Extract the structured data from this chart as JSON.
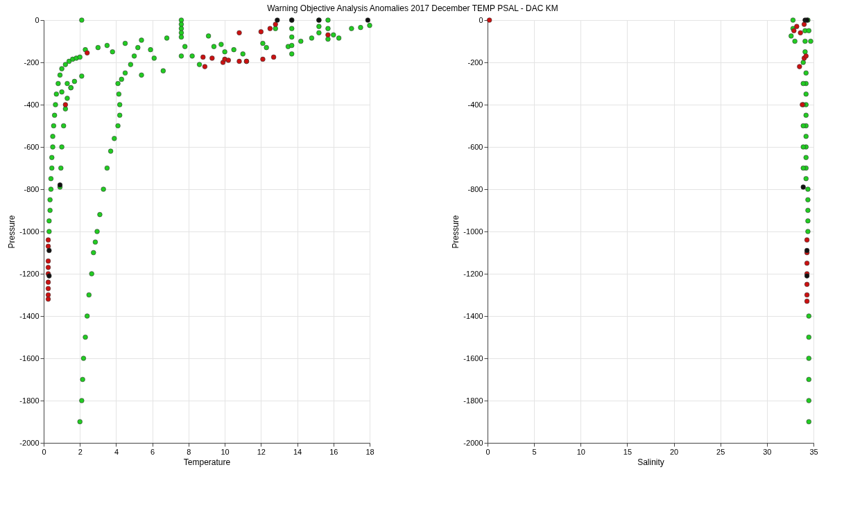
{
  "chart_data": [
    {
      "type": "scatter",
      "title": "Warning Objective Analysis Anomalies 2017 December TEMP PSAL - DAC KM",
      "xlabel": "Temperature",
      "ylabel": "Pressure",
      "xlim": [
        0,
        18
      ],
      "ylim": [
        -2000,
        0
      ],
      "xticks": [
        0,
        2,
        4,
        6,
        8,
        10,
        12,
        14,
        16,
        18
      ],
      "yticks": [
        -2000,
        -1800,
        -1600,
        -1400,
        -1200,
        -1000,
        -800,
        -600,
        -400,
        -200,
        0
      ],
      "grid": true,
      "marker": "circle",
      "series": [
        {
          "color": "#22cc22",
          "x": [
            0.3,
            0.3,
            0.35,
            0.35,
            0.4,
            0.4,
            0.45,
            0.45,
            0.5,
            0.5,
            0.55,
            0.6,
            0.65,
            0.7,
            0.8,
            0.9,
            1.0,
            1.2,
            1.4,
            1.6,
            1.8,
            2.0,
            0.9,
            0.95,
            1.0,
            1.1,
            1.2,
            1.3,
            1.5,
            1.7,
            2.1,
            2.0,
            2.1,
            2.15,
            2.2,
            2.3,
            2.4,
            2.5,
            2.65,
            2.75,
            2.85,
            2.95,
            3.1,
            3.3,
            3.5,
            3.7,
            3.9,
            4.1,
            4.2,
            4.2,
            4.15,
            4.1,
            4.3,
            4.5,
            4.8,
            5.0,
            5.2,
            5.4,
            2.1,
            1.0,
            1.3,
            1.5,
            2.3,
            3.0,
            3.5,
            3.8,
            4.5,
            5.4,
            5.9,
            6.1,
            6.8,
            6.6,
            7.6,
            7.6,
            7.6,
            7.6,
            7.6,
            7.6,
            7.8,
            8.2,
            8.6,
            9.1,
            9.4,
            9.8,
            10.0,
            10.5,
            11.0,
            11.2,
            12.1,
            12.3,
            12.8,
            13.5,
            13.7,
            13.7,
            13.7,
            13.7,
            13.7,
            14.2,
            14.8,
            15.2,
            15.2,
            15.2,
            15.7,
            15.7,
            15.7,
            16.0,
            16.3,
            17.0,
            17.5,
            18.0
          ],
          "values": [
            -1000,
            -950,
            -900,
            -850,
            -800,
            -750,
            -700,
            -650,
            -600,
            -550,
            -500,
            -450,
            -400,
            -350,
            -300,
            -260,
            -230,
            -210,
            -195,
            -185,
            -180,
            -175,
            -790,
            -700,
            -600,
            -500,
            -420,
            -370,
            -320,
            -290,
            -265,
            -1900,
            -1800,
            -1700,
            -1600,
            -1500,
            -1400,
            -1300,
            -1200,
            -1100,
            -1050,
            -1000,
            -920,
            -800,
            -700,
            -620,
            -560,
            -500,
            -450,
            -400,
            -350,
            -300,
            -280,
            -250,
            -210,
            -170,
            -130,
            -95,
            0,
            -340,
            -300,
            -320,
            -140,
            -130,
            -120,
            -150,
            -110,
            -260,
            -140,
            -180,
            -85,
            -240,
            0,
            -20,
            -40,
            -60,
            -80,
            -170,
            -125,
            -170,
            -210,
            -75,
            -125,
            -115,
            -150,
            -140,
            -160,
            -195,
            -110,
            -130,
            -40,
            -125,
            0,
            -40,
            -80,
            -120,
            -160,
            -100,
            -85,
            -60,
            0,
            -30,
            0,
            -40,
            -90,
            -70,
            -85,
            -40,
            -35,
            -25
          ]
        },
        {
          "color": "#cc1111",
          "x": [
            0.25,
            0.25,
            0.25,
            0.25,
            0.25,
            0.25,
            0.25,
            0.25,
            0.25,
            1.2,
            2.4,
            8.9,
            8.8,
            9.3,
            9.9,
            10.0,
            10.2,
            10.8,
            10.8,
            11.2,
            12.0,
            12.1,
            12.5,
            12.7,
            12.8,
            15.7
          ],
          "values": [
            -1040,
            -1070,
            -1140,
            -1170,
            -1200,
            -1240,
            -1270,
            -1300,
            -1320,
            -400,
            -155,
            -220,
            -175,
            -180,
            -200,
            -185,
            -190,
            -60,
            -195,
            -195,
            -55,
            -185,
            -40,
            -175,
            -20,
            -70
          ]
        },
        {
          "color": "#111111",
          "x": [
            0.9,
            0.3,
            0.3,
            12.9,
            13.7,
            15.2,
            17.9
          ],
          "values": [
            -780,
            -1090,
            -1210,
            0,
            0,
            0,
            0
          ]
        }
      ]
    },
    {
      "type": "scatter",
      "xlabel": "Salinity",
      "ylabel": "Pressure",
      "xlim": [
        0,
        35
      ],
      "ylim": [
        -2000,
        0
      ],
      "xticks": [
        0,
        5,
        10,
        15,
        20,
        25,
        30,
        35
      ],
      "yticks": [
        -2000,
        -1800,
        -1600,
        -1400,
        -1200,
        -1000,
        -800,
        -600,
        -400,
        -200,
        0
      ],
      "grid": true,
      "marker": "circle",
      "series": [
        {
          "color": "#22cc22",
          "x": [
            34.5,
            34.5,
            34.5,
            34.5,
            34.5,
            34.5,
            34.4,
            34.4,
            34.4,
            34.4,
            34.4,
            34.2,
            34.2,
            34.2,
            34.2,
            34.2,
            34.2,
            34.2,
            34.2,
            34.2,
            34.2,
            34.2,
            33.9,
            33.9,
            33.9,
            33.9,
            33.9,
            33.9,
            34.1,
            34.1,
            34.1,
            32.8,
            32.8,
            32.6,
            33.0,
            34.7,
            34.5,
            34.4
          ],
          "values": [
            -1900,
            -1800,
            -1700,
            -1600,
            -1500,
            -1400,
            -1000,
            -950,
            -900,
            -850,
            -800,
            -750,
            -700,
            -650,
            -600,
            -550,
            -500,
            -450,
            -400,
            -350,
            -300,
            -250,
            -700,
            -600,
            -500,
            -400,
            -300,
            -200,
            -150,
            -100,
            -50,
            0,
            -40,
            -75,
            -100,
            -100,
            -50,
            0
          ]
        },
        {
          "color": "#cc1111",
          "x": [
            0.2,
            32.9,
            33.2,
            33.6,
            34.0,
            33.5,
            34.0,
            34.2,
            33.8,
            34.3,
            34.3,
            34.3,
            34.3,
            34.3,
            34.3,
            34.3
          ],
          "values": [
            0,
            -50,
            -30,
            -60,
            -20,
            -220,
            -180,
            -170,
            -400,
            -1040,
            -1100,
            -1150,
            -1200,
            -1250,
            -1300,
            -1330
          ]
        },
        {
          "color": "#111111",
          "x": [
            33.9,
            34.3,
            34.3,
            34.1,
            34.3
          ],
          "values": [
            -790,
            -1090,
            -1210,
            0,
            0
          ]
        }
      ]
    }
  ]
}
